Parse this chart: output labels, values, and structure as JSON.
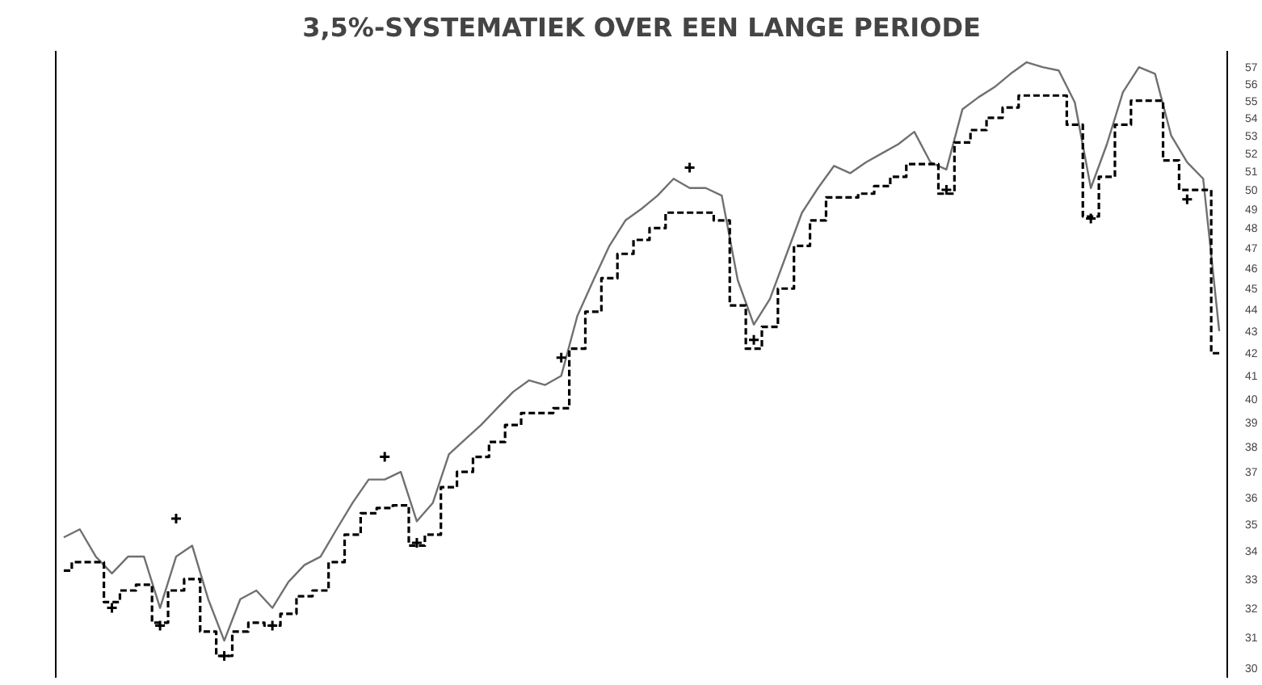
{
  "chart_data": {
    "type": "line",
    "title": "3,5%-SYSTEMATIEK OVER EEN LANGE PERIODE",
    "categories": [
      null,
      null,
      null,
      null,
      null,
      null,
      null,
      null,
      null,
      null,
      null,
      null,
      null,
      null,
      null,
      null,
      null,
      null,
      null,
      null,
      null,
      null,
      null,
      null,
      null,
      null,
      null,
      null,
      null,
      null,
      null,
      null,
      null,
      null,
      null,
      null,
      null,
      null,
      null,
      null,
      null,
      null,
      null,
      null,
      null,
      null,
      null,
      null,
      null,
      null,
      null,
      null,
      null,
      null,
      null,
      null,
      null,
      null,
      null,
      null,
      null,
      null,
      null,
      null,
      null,
      null,
      null,
      null,
      null,
      null,
      null,
      null,
      null
    ],
    "series": [
      {
        "color": "#707070",
        "line_style": "solid",
        "values": [
          34.5,
          34.8,
          33.8,
          33.2,
          33.8,
          33.8,
          32.0,
          33.8,
          34.2,
          32.3,
          30.9,
          32.3,
          32.6,
          32.0,
          32.9,
          33.5,
          33.8,
          34.8,
          35.8,
          36.7,
          36.7,
          37.0,
          35.1,
          35.8,
          37.7,
          38.3,
          38.9,
          39.6,
          40.3,
          40.8,
          40.6,
          41.0,
          43.7,
          45.4,
          47.1,
          48.4,
          49.0,
          49.7,
          50.6,
          50.1,
          50.1,
          49.7,
          45.4,
          43.3,
          44.5,
          46.6,
          48.8,
          50.1,
          51.3,
          50.9,
          51.5,
          52.0,
          52.5,
          53.2,
          51.5,
          51.1,
          54.5,
          55.2,
          55.8,
          56.6,
          57.3,
          57.0,
          56.8,
          54.9,
          50.1,
          52.5,
          55.5,
          57.0,
          56.6,
          53.0,
          51.5,
          50.6,
          43.0
        ]
      },
      {
        "type": "step",
        "color": "#000000",
        "line_style": "dashed",
        "values": [
          33.3,
          33.6,
          33.6,
          32.2,
          32.6,
          32.8,
          31.5,
          32.6,
          33.0,
          31.2,
          30.4,
          31.2,
          31.5,
          31.4,
          31.8,
          32.4,
          32.6,
          33.6,
          34.6,
          35.4,
          35.6,
          35.7,
          34.2,
          34.6,
          36.4,
          37.0,
          37.6,
          38.2,
          38.9,
          39.4,
          39.4,
          39.6,
          42.2,
          43.9,
          45.5,
          46.7,
          47.4,
          48.0,
          48.8,
          48.8,
          48.8,
          48.4,
          44.2,
          42.2,
          43.2,
          45.0,
          47.1,
          48.4,
          49.6,
          49.6,
          49.8,
          50.2,
          50.7,
          51.4,
          51.4,
          49.8,
          52.6,
          53.3,
          54.0,
          54.6,
          55.3,
          55.3,
          55.3,
          53.6,
          48.6,
          50.7,
          53.6,
          55.0,
          55.0,
          51.6,
          50.0,
          50.0,
          42.0
        ]
      },
      {
        "type": "scatter",
        "color": "#000000",
        "marker": "cross",
        "values": [
          null,
          null,
          null,
          32.0,
          null,
          null,
          31.4,
          35.2,
          null,
          null,
          30.4,
          null,
          null,
          31.4,
          null,
          null,
          null,
          null,
          null,
          null,
          37.6,
          null,
          34.3,
          null,
          null,
          null,
          null,
          null,
          null,
          null,
          null,
          41.8,
          null,
          null,
          null,
          null,
          null,
          null,
          null,
          51.2,
          null,
          null,
          null,
          42.6,
          null,
          null,
          null,
          null,
          null,
          null,
          null,
          null,
          null,
          null,
          null,
          50.0,
          null,
          null,
          null,
          null,
          null,
          null,
          null,
          null,
          48.5,
          null,
          null,
          null,
          null,
          null,
          49.5,
          null,
          null
        ]
      }
    ],
    "log": "y",
    "ylim": [
      29.7,
      58
    ],
    "yticks": [
      30,
      31,
      32,
      33,
      34,
      35,
      36,
      37,
      38,
      39,
      40,
      41,
      42,
      43,
      44,
      45,
      46,
      47,
      48,
      49,
      50,
      51,
      52,
      53,
      54,
      55,
      56,
      57
    ],
    "tick_labels": "y",
    "grid": false
  }
}
